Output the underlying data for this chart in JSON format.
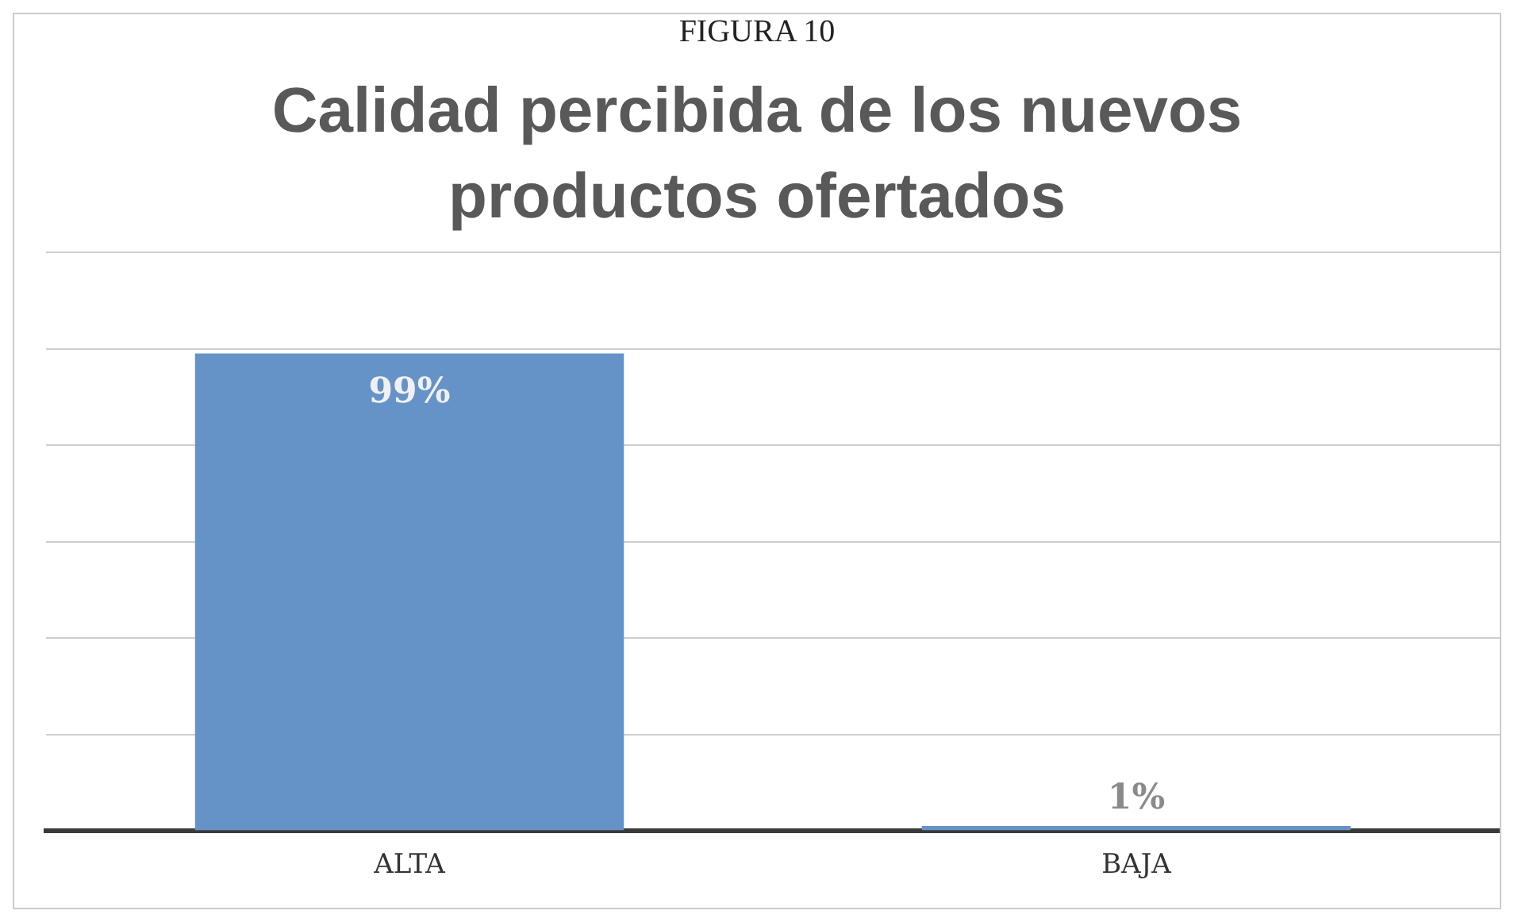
{
  "chart_data": {
    "type": "bar",
    "title": "Calidad percibida de los nuevos productos ofertados",
    "annotations": [
      "FIGURA 10"
    ],
    "categories": [
      "ALTA",
      "BAJA"
    ],
    "values": [
      99,
      1
    ],
    "value_labels": [
      "99%",
      "1%"
    ],
    "color": "#6693c7",
    "ylim": [
      0,
      120
    ],
    "yticks": [
      {
        "value": 0,
        "label": null
      },
      {
        "value": 20,
        "label": null
      },
      {
        "value": 40,
        "label": null
      },
      {
        "value": 60,
        "label": null
      },
      {
        "value": 80,
        "label": null
      },
      {
        "value": 100,
        "label": null
      },
      {
        "value": 120,
        "label": null
      }
    ],
    "tick_labels": "x",
    "grid": "y",
    "legend": false
  }
}
